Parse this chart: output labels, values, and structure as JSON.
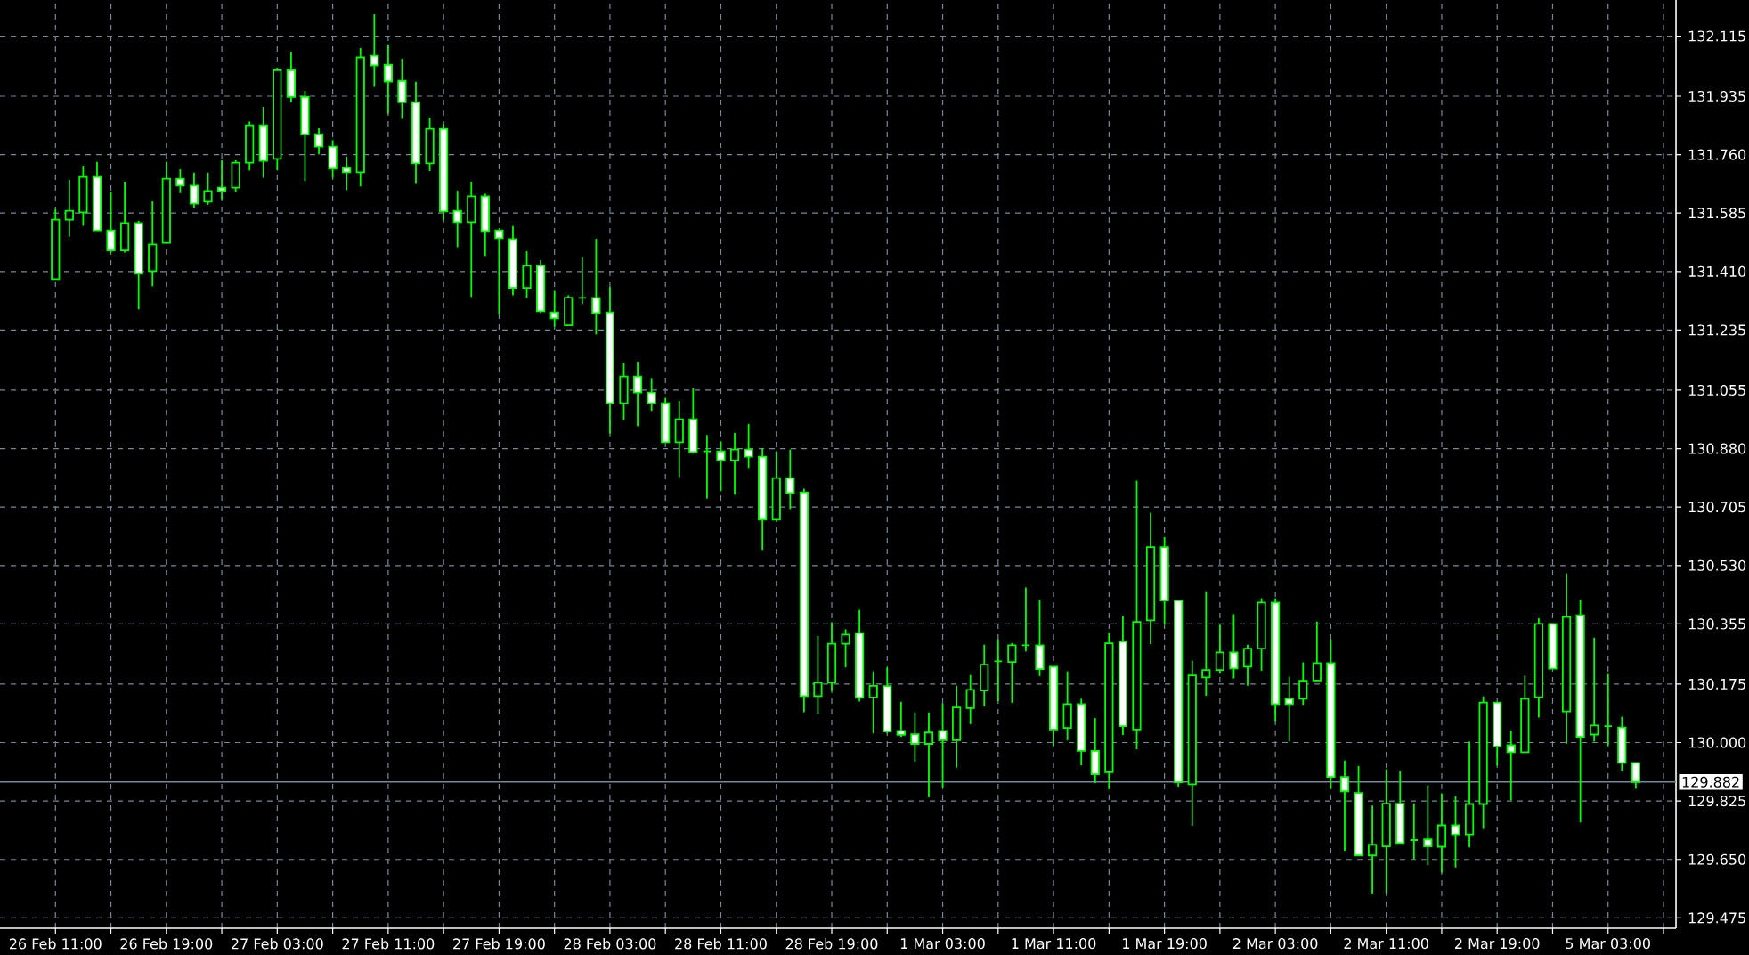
{
  "chart_data": {
    "type": "candlestick",
    "categories": [
      "26 Feb 11:00",
      null,
      null,
      null,
      null,
      null,
      null,
      null,
      "26 Feb 19:00",
      null,
      null,
      null,
      null,
      null,
      null,
      null,
      "27 Feb 03:00",
      null,
      null,
      null,
      null,
      null,
      null,
      null,
      "27 Feb 11:00",
      null,
      null,
      null,
      null,
      null,
      null,
      null,
      "27 Feb 19:00",
      null,
      null,
      null,
      null,
      null,
      null,
      null,
      "28 Feb 03:00",
      null,
      null,
      null,
      null,
      null,
      null,
      null,
      "28 Feb 11:00",
      null,
      null,
      null,
      null,
      null,
      null,
      null,
      "28 Feb 19:00",
      null,
      null,
      null,
      null,
      null,
      null,
      null,
      "1 Mar 03:00",
      null,
      null,
      null,
      null,
      null,
      null,
      null,
      "1 Mar 11:00",
      null,
      null,
      null,
      null,
      null,
      null,
      null,
      "1 Mar 19:00",
      null,
      null,
      null,
      null,
      null,
      null,
      null,
      "2 Mar 03:00",
      null,
      null,
      null,
      null,
      null,
      null,
      null,
      "2 Mar 11:00",
      null,
      null,
      null,
      null,
      null,
      null,
      null,
      "2 Mar 19:00",
      null,
      null,
      null,
      null,
      null,
      null,
      null,
      "5 Mar 03:00",
      null,
      null
    ],
    "ohlc": [
      [
        131.387,
        131.597,
        131.387,
        131.565
      ],
      [
        131.565,
        131.684,
        131.515,
        131.592
      ],
      [
        131.587,
        131.727,
        131.547,
        131.693
      ],
      [
        131.693,
        131.738,
        131.533,
        131.533
      ],
      [
        131.533,
        131.647,
        131.467,
        131.473
      ],
      [
        131.473,
        131.679,
        131.467,
        131.555
      ],
      [
        131.555,
        131.562,
        131.297,
        131.403
      ],
      [
        131.411,
        131.62,
        131.366,
        131.491
      ],
      [
        131.496,
        131.738,
        131.496,
        131.688
      ],
      [
        131.688,
        131.716,
        131.645,
        131.667
      ],
      [
        131.667,
        131.706,
        131.601,
        131.613
      ],
      [
        131.619,
        131.706,
        131.61,
        131.651
      ],
      [
        131.661,
        131.743,
        131.627,
        131.651
      ],
      [
        131.661,
        131.743,
        131.649,
        131.736
      ],
      [
        131.736,
        131.859,
        131.713,
        131.848
      ],
      [
        131.848,
        131.903,
        131.691,
        131.741
      ],
      [
        131.747,
        132.02,
        131.713,
        132.013
      ],
      [
        132.013,
        132.068,
        131.917,
        131.933
      ],
      [
        131.933,
        131.951,
        131.681,
        131.821
      ],
      [
        131.821,
        131.839,
        131.761,
        131.784
      ],
      [
        131.784,
        131.803,
        131.691,
        131.718
      ],
      [
        131.72,
        131.754,
        131.654,
        131.707
      ],
      [
        131.707,
        132.079,
        131.665,
        132.051
      ],
      [
        132.056,
        132.18,
        131.963,
        132.027
      ],
      [
        132.029,
        132.09,
        131.883,
        131.979
      ],
      [
        131.981,
        132.047,
        131.867,
        131.917
      ],
      [
        131.917,
        131.978,
        131.675,
        131.734
      ],
      [
        131.734,
        131.871,
        131.711,
        131.837
      ],
      [
        131.837,
        131.853,
        131.563,
        131.59
      ],
      [
        131.592,
        131.652,
        131.483,
        131.558
      ],
      [
        131.558,
        131.679,
        131.334,
        131.635
      ],
      [
        131.635,
        131.643,
        131.457,
        131.531
      ],
      [
        131.533,
        131.533,
        131.281,
        131.51
      ],
      [
        131.507,
        131.546,
        131.339,
        131.361
      ],
      [
        131.361,
        131.471,
        131.331,
        131.427
      ],
      [
        131.427,
        131.444,
        131.286,
        131.291
      ],
      [
        131.288,
        131.352,
        131.245,
        131.27
      ],
      [
        131.249,
        131.339,
        131.249,
        131.332
      ],
      [
        131.331,
        131.455,
        131.313,
        131.331
      ],
      [
        131.331,
        131.508,
        131.222,
        131.286
      ],
      [
        131.288,
        131.364,
        130.925,
        131.016
      ],
      [
        131.016,
        131.135,
        130.966,
        131.096
      ],
      [
        131.096,
        131.14,
        130.947,
        131.048
      ],
      [
        131.048,
        131.091,
        130.993,
        131.016
      ],
      [
        131.016,
        131.032,
        130.899,
        130.899
      ],
      [
        130.899,
        131.023,
        130.795,
        130.968
      ],
      [
        130.968,
        131.06,
        130.865,
        130.87
      ],
      [
        130.872,
        130.92,
        130.731,
        130.872
      ],
      [
        130.872,
        130.902,
        130.753,
        130.845
      ],
      [
        130.845,
        130.927,
        130.742,
        130.877
      ],
      [
        130.877,
        130.954,
        130.822,
        130.856
      ],
      [
        130.856,
        130.881,
        130.577,
        130.667
      ],
      [
        130.667,
        130.872,
        130.667,
        130.792
      ],
      [
        130.792,
        130.877,
        130.699,
        130.747
      ],
      [
        130.749,
        130.76,
        130.091,
        130.139
      ],
      [
        130.139,
        130.319,
        130.086,
        130.179
      ],
      [
        130.179,
        130.36,
        130.155,
        130.296
      ],
      [
        130.296,
        130.339,
        130.225,
        130.323
      ],
      [
        130.328,
        130.397,
        130.123,
        130.134
      ],
      [
        130.135,
        130.213,
        130.028,
        130.17
      ],
      [
        130.169,
        130.224,
        130.028,
        130.033
      ],
      [
        130.035,
        130.122,
        130.017,
        130.023
      ],
      [
        130.025,
        130.09,
        129.943,
        129.996
      ],
      [
        129.996,
        130.09,
        129.836,
        130.03
      ],
      [
        130.035,
        130.117,
        129.866,
        130.007
      ],
      [
        130.007,
        130.17,
        129.925,
        130.105
      ],
      [
        130.103,
        130.202,
        130.055,
        130.158
      ],
      [
        130.156,
        130.293,
        130.108,
        130.233
      ],
      [
        130.243,
        130.309,
        130.124,
        130.243
      ],
      [
        130.241,
        130.298,
        130.119,
        130.291
      ],
      [
        130.291,
        130.464,
        130.273,
        130.291
      ],
      [
        130.291,
        130.426,
        130.199,
        130.22
      ],
      [
        130.227,
        130.227,
        129.991,
        130.039
      ],
      [
        130.044,
        130.213,
        130.007,
        130.115
      ],
      [
        130.115,
        130.131,
        129.932,
        129.975
      ],
      [
        129.975,
        130.073,
        129.879,
        129.905
      ],
      [
        129.911,
        130.33,
        129.861,
        130.297
      ],
      [
        130.302,
        130.378,
        130.023,
        130.049
      ],
      [
        130.039,
        130.784,
        129.98,
        130.361
      ],
      [
        130.366,
        130.688,
        130.295,
        130.585
      ],
      [
        130.585,
        130.615,
        130.353,
        130.425
      ],
      [
        130.425,
        130.425,
        129.868,
        129.881
      ],
      [
        129.875,
        130.245,
        129.751,
        130.201
      ],
      [
        130.195,
        130.453,
        130.14,
        130.217
      ],
      [
        130.217,
        130.352,
        130.206,
        130.27
      ],
      [
        130.27,
        130.384,
        130.192,
        130.222
      ],
      [
        130.227,
        130.293,
        130.17,
        130.281
      ],
      [
        130.281,
        130.432,
        130.215,
        130.419
      ],
      [
        130.419,
        130.432,
        130.065,
        130.115
      ],
      [
        130.131,
        130.197,
        130.003,
        130.115
      ],
      [
        130.131,
        130.24,
        130.113,
        130.185
      ],
      [
        130.186,
        130.362,
        130.185,
        130.238
      ],
      [
        130.238,
        130.309,
        129.861,
        129.897
      ],
      [
        129.897,
        129.946,
        129.676,
        129.854
      ],
      [
        129.849,
        129.93,
        129.662,
        129.662
      ],
      [
        129.662,
        129.811,
        129.548,
        129.694
      ],
      [
        129.689,
        129.92,
        129.55,
        129.817
      ],
      [
        129.817,
        129.914,
        129.699,
        129.699
      ],
      [
        129.708,
        129.818,
        129.651,
        129.708
      ],
      [
        129.71,
        129.872,
        129.633,
        129.689
      ],
      [
        129.688,
        129.848,
        129.611,
        129.752
      ],
      [
        129.752,
        129.839,
        129.626,
        129.725
      ],
      [
        129.725,
        130.003,
        129.686,
        129.816
      ],
      [
        129.816,
        130.138,
        129.741,
        130.12
      ],
      [
        130.12,
        130.12,
        129.931,
        129.988
      ],
      [
        129.992,
        130.036,
        129.827,
        129.971
      ],
      [
        129.971,
        130.2,
        129.971,
        130.131
      ],
      [
        130.136,
        130.372,
        130.075,
        130.355
      ],
      [
        130.355,
        130.355,
        130.221,
        130.221
      ],
      [
        130.093,
        130.506,
        129.997,
        130.376
      ],
      [
        130.381,
        130.426,
        129.761,
        130.017
      ],
      [
        130.024,
        130.314,
        130.003,
        130.051
      ],
      [
        130.049,
        130.205,
        129.992,
        130.049
      ],
      [
        130.045,
        130.077,
        129.915,
        129.939
      ],
      [
        129.939,
        129.939,
        129.862,
        129.882
      ]
    ],
    "color": "#00ff00",
    "ylim": [
      129.444,
      132.223
    ],
    "yticks": [
      132.115,
      131.935,
      {
        "value": 131.76,
        "label": "131.760"
      },
      131.585,
      {
        "value": 131.41,
        "label": "131.410"
      },
      131.235,
      131.055,
      {
        "value": 130.88,
        "label": "130.880"
      },
      130.705,
      {
        "value": 130.53,
        "label": "130.530"
      },
      130.355,
      130.175,
      {
        "value": 130,
        "label": "130.000"
      },
      129.825,
      {
        "value": 129.65,
        "label": "129.650"
      },
      129.475
    ],
    "grid": true,
    "ref_lines": [
      {
        "axis": "y",
        "value": 129.882,
        "label": "129.882",
        "color": "#778899"
      }
    ]
  }
}
